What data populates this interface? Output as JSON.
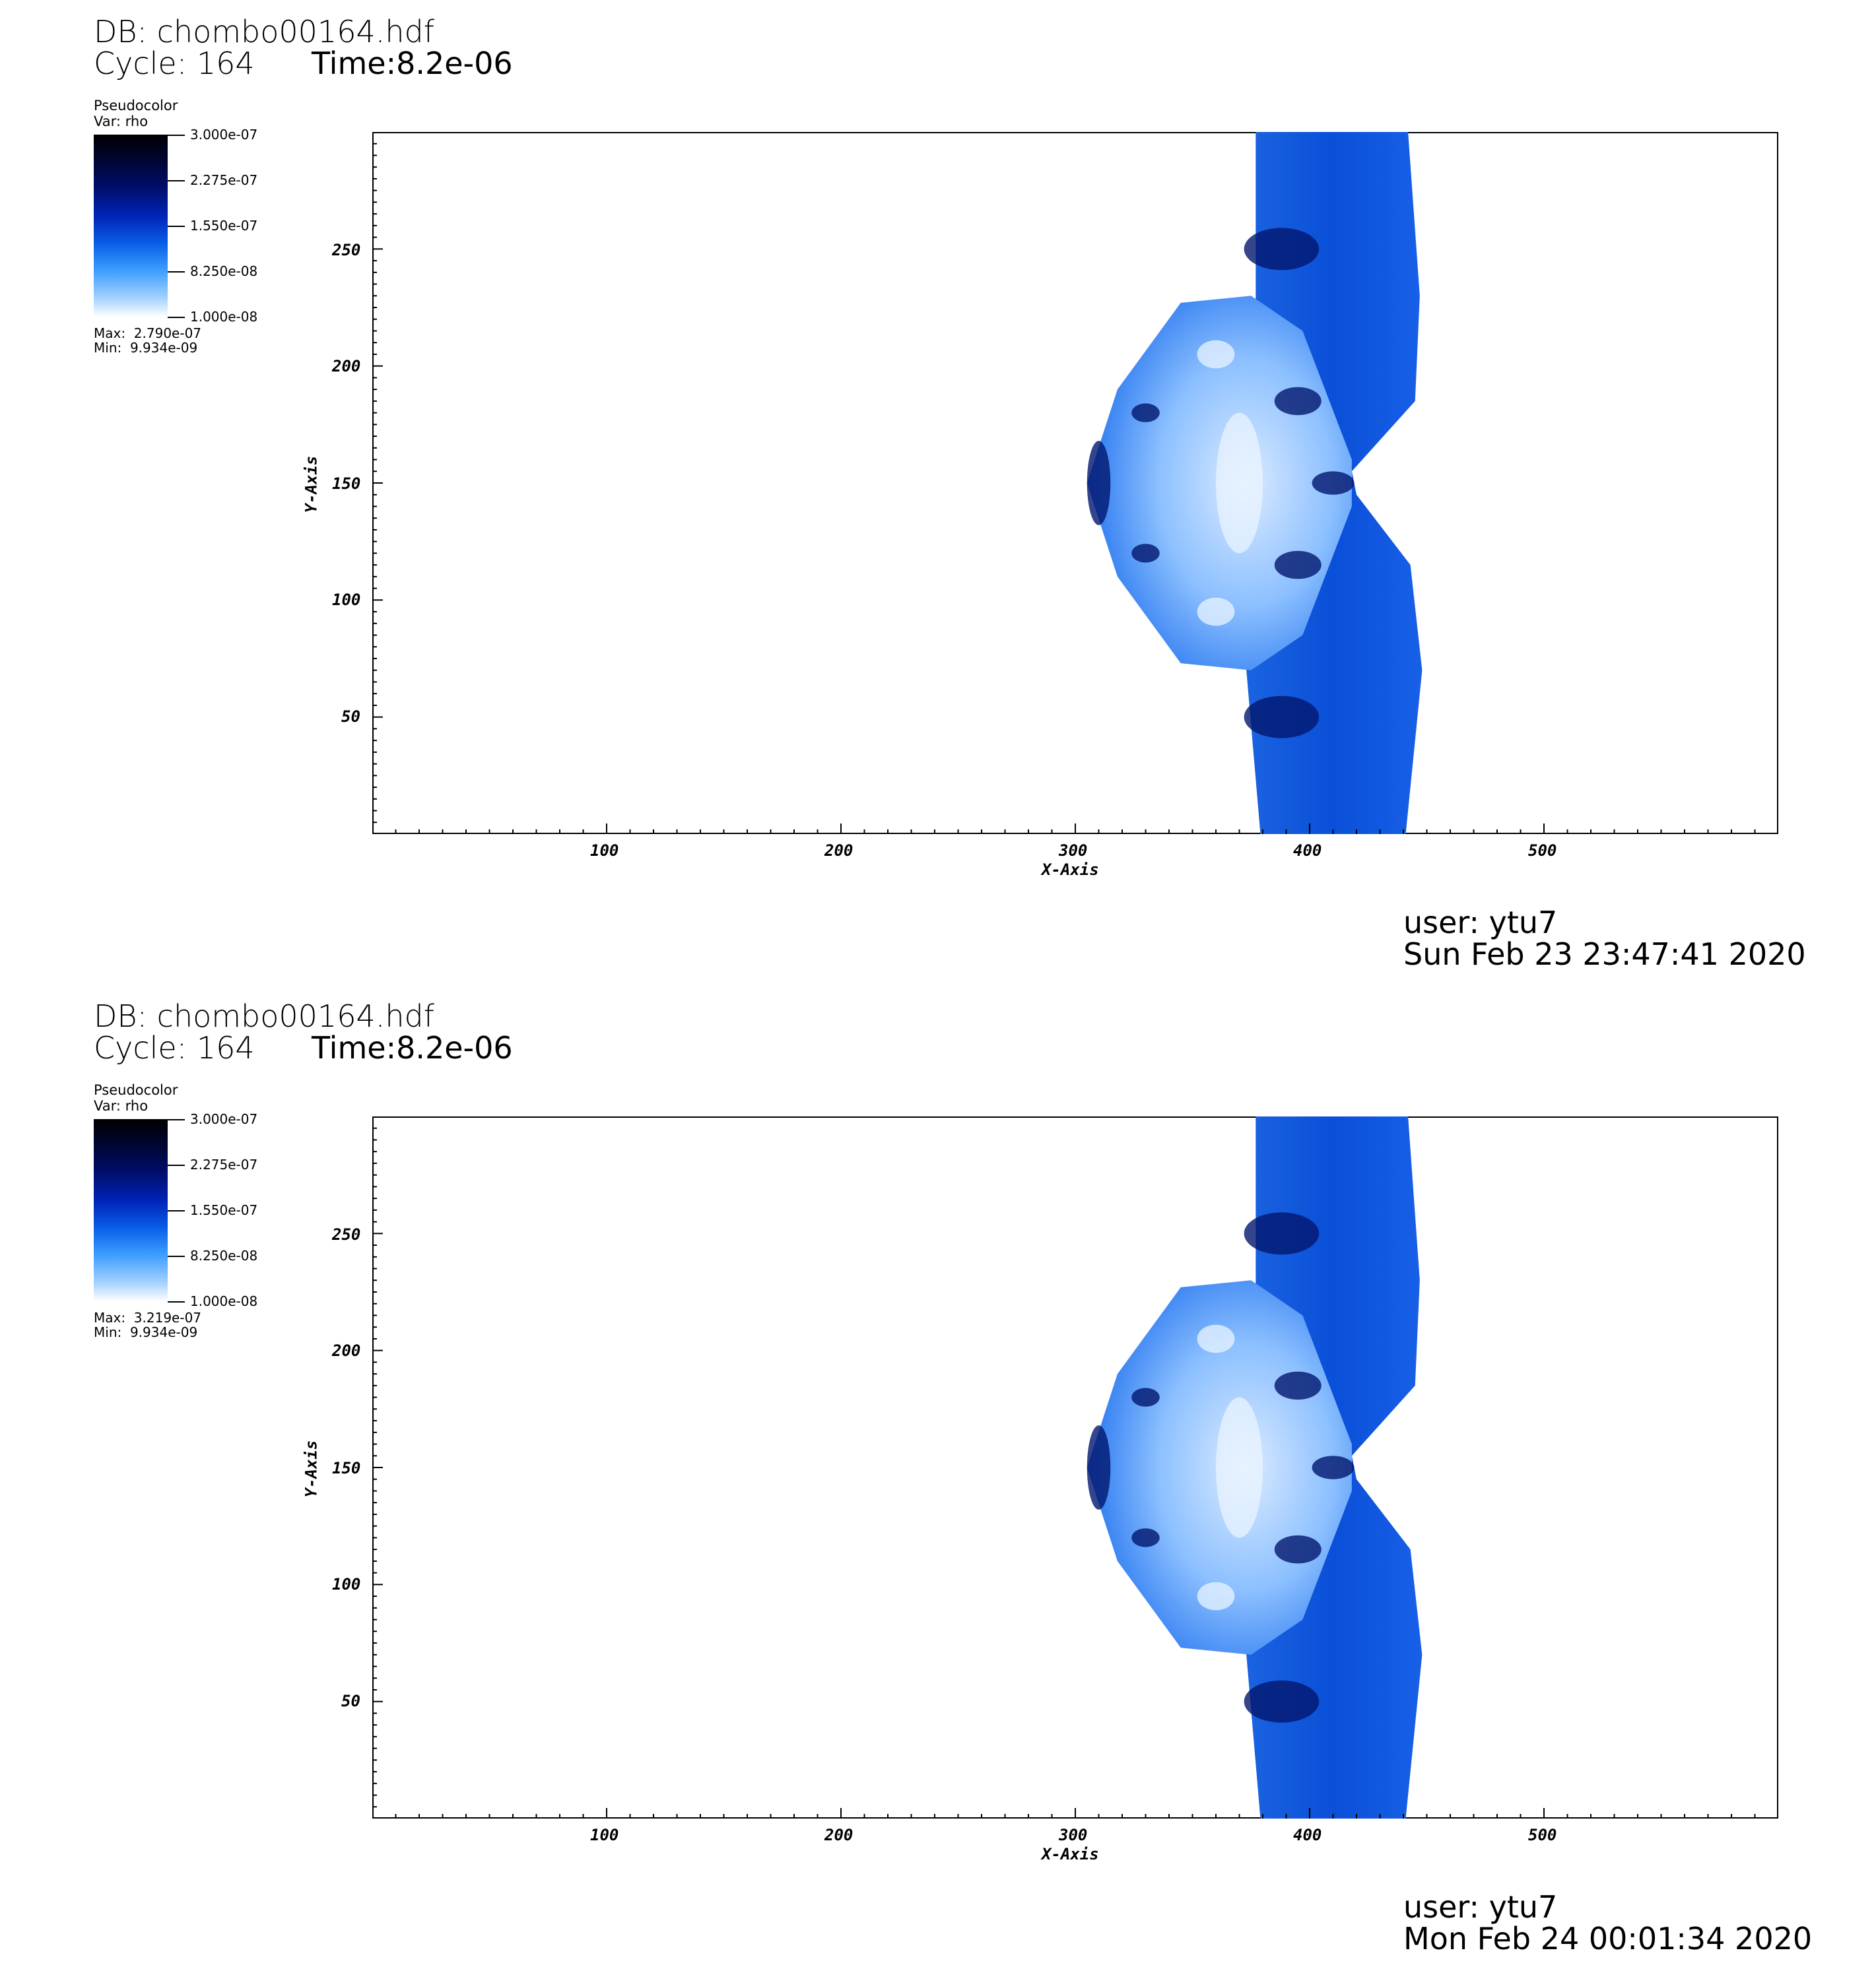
{
  "panels": [
    {
      "db_label": "DB: chombo00164.hdf",
      "cycle_label": "Cycle: 164",
      "time_label": "Time:8.2e-06",
      "legend": {
        "type_label": "Pseudocolor",
        "var_label": "Var: rho",
        "ticks": [
          "3.000e-07",
          "2.275e-07",
          "1.550e-07",
          "8.250e-08",
          "1.000e-08"
        ],
        "max_label": "Max:  2.790e-07",
        "min_label": "Min:  9.934e-09"
      },
      "user_label": "user: ytu7",
      "date_label": "Sun Feb 23 23:47:41 2020"
    },
    {
      "db_label": "DB: chombo00164.hdf",
      "cycle_label": "Cycle: 164",
      "time_label": "Time:8.2e-06",
      "legend": {
        "type_label": "Pseudocolor",
        "var_label": "Var: rho",
        "ticks": [
          "3.000e-07",
          "2.275e-07",
          "1.550e-07",
          "8.250e-08",
          "1.000e-08"
        ],
        "max_label": "Max:  3.219e-07",
        "min_label": "Min:  9.934e-09"
      },
      "user_label": "user: ytu7",
      "date_label": "Mon Feb 24 00:01:34 2020"
    }
  ],
  "chart_data": [
    {
      "type": "heatmap",
      "variable": "rho",
      "colormap": [
        "#ffffff",
        "#3ea0ff",
        "#0024b8",
        "#000d66",
        "#000000"
      ],
      "color_range": [
        1e-08,
        3e-07
      ],
      "data_max": 2.79e-07,
      "data_min": 9.934e-09,
      "xlabel": "X-Axis",
      "ylabel": "Y-Axis",
      "xlim": [
        0,
        600
      ],
      "ylim": [
        0,
        300
      ],
      "xticks": [
        100,
        200,
        300,
        400,
        500
      ],
      "yticks": [
        50,
        100,
        150,
        200,
        250
      ]
    },
    {
      "type": "heatmap",
      "variable": "rho",
      "colormap": [
        "#ffffff",
        "#3ea0ff",
        "#0024b8",
        "#000d66",
        "#000000"
      ],
      "color_range": [
        1e-08,
        3e-07
      ],
      "data_max": 3.219e-07,
      "data_min": 9.934e-09,
      "xlabel": "X-Axis",
      "ylabel": "Y-Axis",
      "xlim": [
        0,
        600
      ],
      "ylim": [
        0,
        300
      ],
      "xticks": [
        100,
        200,
        300,
        400,
        500
      ],
      "yticks": [
        50,
        100,
        150,
        200,
        250
      ]
    }
  ]
}
